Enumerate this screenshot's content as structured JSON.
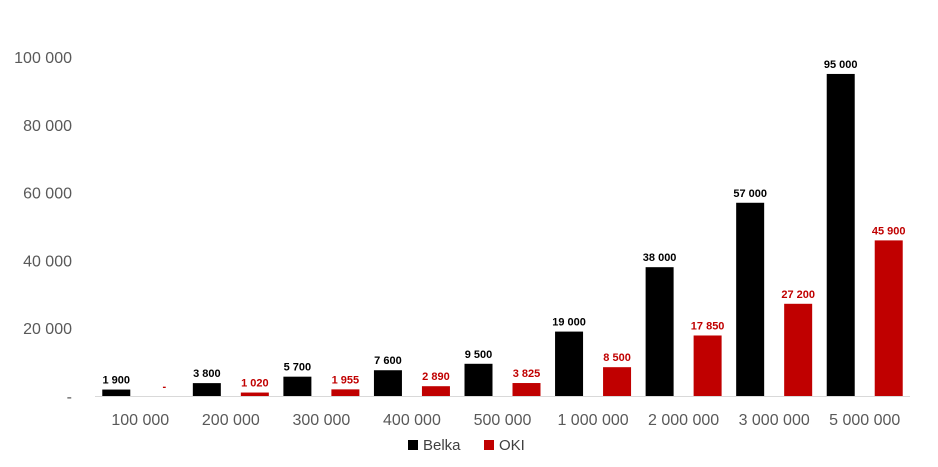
{
  "chart_data": {
    "type": "bar",
    "categories": [
      "100 000",
      "200 000",
      "300 000",
      "400 000",
      "500 000",
      "1 000 000",
      "2 000 000",
      "3 000 000",
      "5 000 000"
    ],
    "series": [
      {
        "name": "Belka",
        "color": "#000000",
        "values": [
          1900,
          3800,
          5700,
          7600,
          9500,
          19000,
          38000,
          57000,
          95000
        ],
        "labels": [
          "1 900",
          "3 800",
          "5 700",
          "7 600",
          "9 500",
          "19 000",
          "38 000",
          "57 000",
          "95 000"
        ]
      },
      {
        "name": "OKI",
        "color": "#C00000",
        "values": [
          0,
          1020,
          1955,
          2890,
          3825,
          8500,
          17850,
          27200,
          45900
        ],
        "labels": [
          "-",
          "1 020",
          "1 955",
          "2 890",
          "3 825",
          "8 500",
          "17 850",
          "27 200",
          "45 900"
        ]
      }
    ],
    "ylim": [
      0,
      100000
    ],
    "y_ticks": [
      0,
      20000,
      40000,
      60000,
      80000,
      100000
    ],
    "y_tick_labels": [
      "-",
      "20 000",
      "40 000",
      "60 000",
      "80 000",
      "100 000"
    ],
    "grid": false,
    "legend_position": "bottom",
    "title": "",
    "xlabel": "",
    "ylabel": ""
  }
}
